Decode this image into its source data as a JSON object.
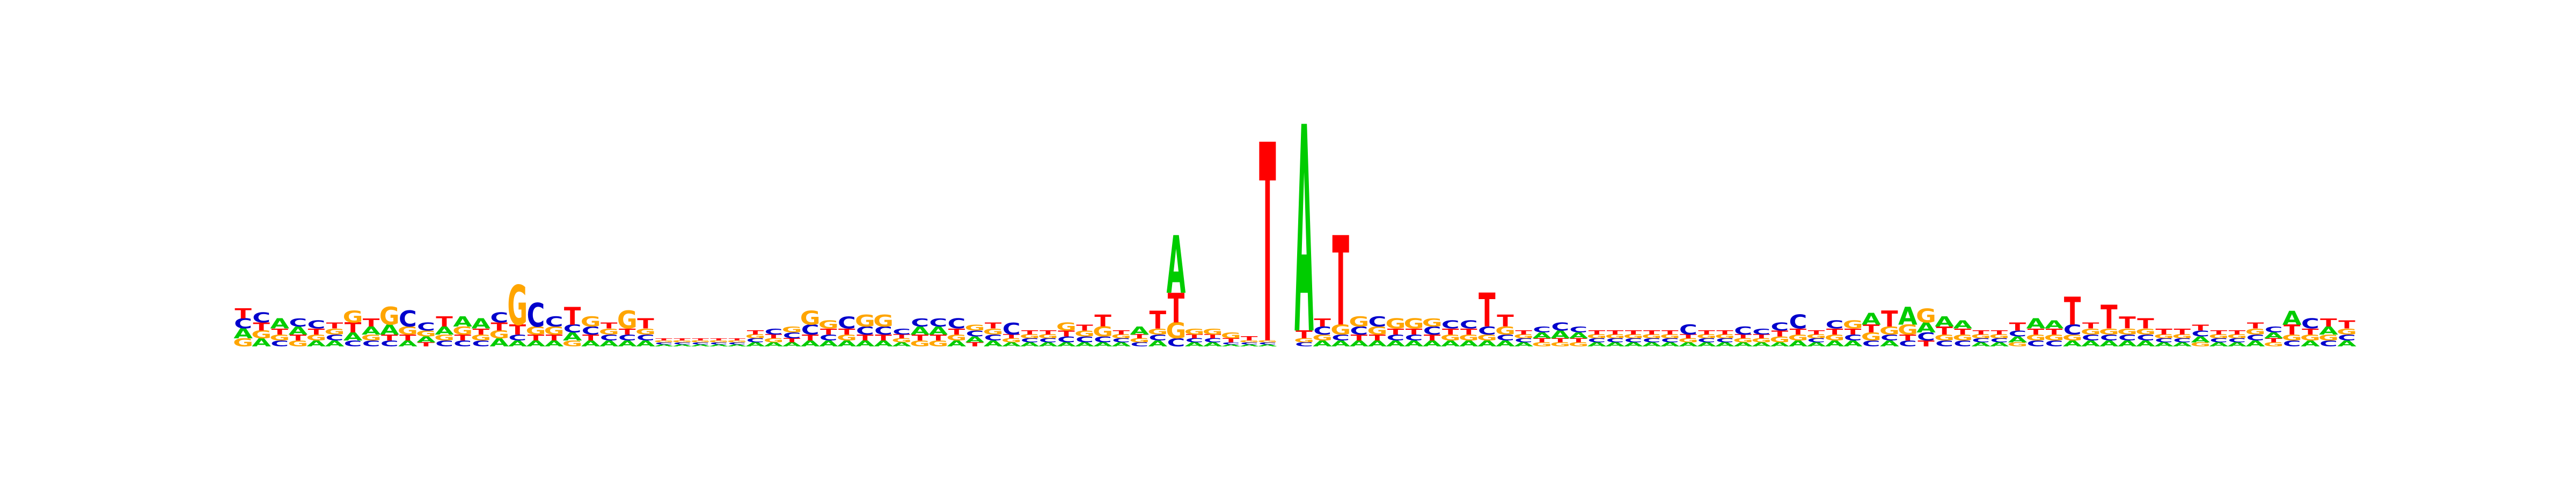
{
  "chart_data": {
    "type": "sequence_logo",
    "alphabet": [
      "A",
      "C",
      "G",
      "T"
    ],
    "colors": {
      "A": "#00cc00",
      "C": "#0000cc",
      "G": "#ffa500",
      "T": "#ff0000"
    },
    "ylim": [
      0,
      2
    ],
    "positions": [
      {
        "A": 0.05,
        "C": 0.05,
        "G": 0.04,
        "T": 0.05
      },
      {
        "A": 0.04,
        "C": 0.05,
        "G": 0.04,
        "T": 0.04
      },
      {
        "A": 0.05,
        "C": 0.03,
        "G": 0.03,
        "T": 0.03
      },
      {
        "A": 0.04,
        "C": 0.04,
        "G": 0.03,
        "T": 0.03
      },
      {
        "A": 0.03,
        "C": 0.04,
        "G": 0.03,
        "T": 0.03
      },
      {
        "A": 0.03,
        "C": 0.03,
        "G": 0.03,
        "T": 0.03
      },
      {
        "A": 0.04,
        "C": 0.03,
        "G": 0.06,
        "T": 0.05
      },
      {
        "A": 0.04,
        "C": 0.03,
        "G": 0.03,
        "T": 0.04
      },
      {
        "A": 0.05,
        "C": 0.03,
        "G": 0.09,
        "T": 0.03
      },
      {
        "A": 0.03,
        "C": 0.08,
        "G": 0.04,
        "T": 0.03
      },
      {
        "A": 0.03,
        "C": 0.04,
        "G": 0.03,
        "T": 0.02
      },
      {
        "A": 0.04,
        "C": 0.03,
        "G": 0.03,
        "T": 0.05
      },
      {
        "A": 0.05,
        "C": 0.03,
        "G": 0.04,
        "T": 0.03
      },
      {
        "A": 0.05,
        "C": 0.03,
        "G": 0.03,
        "T": 0.03
      },
      {
        "A": 0.04,
        "C": 0.05,
        "G": 0.04,
        "T": 0.04
      },
      {
        "A": 0.03,
        "C": 0.03,
        "G": 0.2,
        "T": 0.05
      },
      {
        "A": 0.03,
        "C": 0.12,
        "G": 0.04,
        "T": 0.03
      },
      {
        "A": 0.03,
        "C": 0.05,
        "G": 0.04,
        "T": 0.03
      },
      {
        "A": 0.04,
        "C": 0.04,
        "G": 0.03,
        "T": 0.09
      },
      {
        "A": 0.03,
        "C": 0.04,
        "G": 0.05,
        "T": 0.03
      },
      {
        "A": 0.03,
        "C": 0.03,
        "G": 0.03,
        "T": 0.03
      },
      {
        "A": 0.03,
        "C": 0.03,
        "G": 0.09,
        "T": 0.03
      },
      {
        "A": 0.03,
        "C": 0.03,
        "G": 0.03,
        "T": 0.05
      },
      {
        "A": 0.01,
        "C": 0.01,
        "G": 0.01,
        "T": 0.01
      },
      {
        "A": 0.01,
        "C": 0.01,
        "G": 0.01,
        "T": 0.01
      },
      {
        "A": 0.01,
        "C": 0.01,
        "G": 0.01,
        "T": 0.01
      },
      {
        "A": 0.01,
        "C": 0.01,
        "G": 0.01,
        "T": 0.01
      },
      {
        "A": 0.01,
        "C": 0.01,
        "G": 0.01,
        "T": 0.01
      },
      {
        "A": 0.02,
        "C": 0.02,
        "G": 0.02,
        "T": 0.02
      },
      {
        "A": 0.02,
        "C": 0.03,
        "G": 0.02,
        "T": 0.02
      },
      {
        "A": 0.02,
        "C": 0.03,
        "G": 0.03,
        "T": 0.02
      },
      {
        "A": 0.03,
        "C": 0.05,
        "G": 0.07,
        "T": 0.03
      },
      {
        "A": 0.03,
        "C": 0.03,
        "G": 0.04,
        "T": 0.03
      },
      {
        "A": 0.03,
        "C": 0.06,
        "G": 0.03,
        "T": 0.03
      },
      {
        "A": 0.03,
        "C": 0.04,
        "G": 0.06,
        "T": 0.03
      },
      {
        "A": 0.03,
        "C": 0.04,
        "G": 0.06,
        "T": 0.03
      },
      {
        "A": 0.02,
        "C": 0.03,
        "G": 0.02,
        "T": 0.02
      },
      {
        "A": 0.04,
        "C": 0.04,
        "G": 0.03,
        "T": 0.03
      },
      {
        "A": 0.04,
        "C": 0.04,
        "G": 0.03,
        "T": 0.03
      },
      {
        "A": 0.03,
        "C": 0.05,
        "G": 0.03,
        "T": 0.03
      },
      {
        "A": 0.03,
        "C": 0.03,
        "G": 0.03,
        "T": 0.02
      },
      {
        "A": 0.03,
        "C": 0.03,
        "G": 0.03,
        "T": 0.03
      },
      {
        "A": 0.02,
        "C": 0.06,
        "G": 0.02,
        "T": 0.02
      },
      {
        "A": 0.02,
        "C": 0.02,
        "G": 0.02,
        "T": 0.02
      },
      {
        "A": 0.02,
        "C": 0.02,
        "G": 0.02,
        "T": 0.02
      },
      {
        "A": 0.02,
        "C": 0.03,
        "G": 0.04,
        "T": 0.03
      },
      {
        "A": 0.02,
        "C": 0.03,
        "G": 0.03,
        "T": 0.03
      },
      {
        "A": 0.02,
        "C": 0.03,
        "G": 0.05,
        "T": 0.06
      },
      {
        "A": 0.02,
        "C": 0.02,
        "G": 0.02,
        "T": 0.02
      },
      {
        "A": 0.04,
        "C": 0.02,
        "G": 0.02,
        "T": 0.02
      },
      {
        "A": 0.03,
        "C": 0.03,
        "G": 0.03,
        "T": 0.09
      },
      {
        "A": 0.29,
        "C": 0.04,
        "G": 0.08,
        "T": 0.15
      },
      {
        "A": 0.02,
        "C": 0.02,
        "G": 0.03,
        "T": 0.02
      },
      {
        "A": 0.02,
        "C": 0.02,
        "G": 0.03,
        "T": 0.02
      },
      {
        "A": 0.01,
        "C": 0.01,
        "G": 0.03,
        "T": 0.02
      },
      {
        "A": 0.01,
        "C": 0.01,
        "G": 0.01,
        "T": 0.02
      },
      {
        "A": 0.01,
        "C": 0.01,
        "G": 0.01,
        "T": 1.0
      },
      {
        "A": 0.0,
        "C": 0.0,
        "G": 0.0,
        "T": 0.0
      },
      {
        "A": 1.04,
        "C": 0.02,
        "G": 0.02,
        "T": 0.04
      },
      {
        "A": 0.03,
        "C": 0.04,
        "G": 0.03,
        "T": 0.04
      },
      {
        "A": 0.03,
        "C": 0.03,
        "G": 0.05,
        "T": 0.45
      },
      {
        "A": 0.03,
        "C": 0.04,
        "G": 0.05,
        "T": 0.03
      },
      {
        "A": 0.03,
        "C": 0.05,
        "G": 0.04,
        "T": 0.03
      },
      {
        "A": 0.03,
        "C": 0.03,
        "G": 0.05,
        "T": 0.03
      },
      {
        "A": 0.03,
        "C": 0.03,
        "G": 0.05,
        "T": 0.03
      },
      {
        "A": 0.03,
        "C": 0.04,
        "G": 0.04,
        "T": 0.03
      },
      {
        "A": 0.03,
        "C": 0.04,
        "G": 0.03,
        "T": 0.03
      },
      {
        "A": 0.03,
        "C": 0.04,
        "G": 0.03,
        "T": 0.03
      },
      {
        "A": 0.03,
        "C": 0.04,
        "G": 0.03,
        "T": 0.17
      },
      {
        "A": 0.03,
        "C": 0.03,
        "G": 0.04,
        "T": 0.06
      },
      {
        "A": 0.02,
        "C": 0.02,
        "G": 0.02,
        "T": 0.02
      },
      {
        "A": 0.03,
        "C": 0.03,
        "G": 0.02,
        "T": 0.02
      },
      {
        "A": 0.04,
        "C": 0.04,
        "G": 0.02,
        "T": 0.02
      },
      {
        "A": 0.03,
        "C": 0.03,
        "G": 0.02,
        "T": 0.02
      },
      {
        "A": 0.02,
        "C": 0.02,
        "G": 0.02,
        "T": 0.02
      },
      {
        "A": 0.02,
        "C": 0.02,
        "G": 0.02,
        "T": 0.02
      },
      {
        "A": 0.02,
        "C": 0.02,
        "G": 0.02,
        "T": 0.02
      },
      {
        "A": 0.02,
        "C": 0.02,
        "G": 0.02,
        "T": 0.02
      },
      {
        "A": 0.02,
        "C": 0.02,
        "G": 0.02,
        "T": 0.02
      },
      {
        "A": 0.02,
        "C": 0.05,
        "G": 0.02,
        "T": 0.02
      },
      {
        "A": 0.02,
        "C": 0.02,
        "G": 0.02,
        "T": 0.02
      },
      {
        "A": 0.02,
        "C": 0.02,
        "G": 0.02,
        "T": 0.02
      },
      {
        "A": 0.02,
        "C": 0.04,
        "G": 0.02,
        "T": 0.02
      },
      {
        "A": 0.02,
        "C": 0.03,
        "G": 0.02,
        "T": 0.02
      },
      {
        "A": 0.02,
        "C": 0.04,
        "G": 0.03,
        "T": 0.03
      },
      {
        "A": 0.03,
        "C": 0.07,
        "G": 0.03,
        "T": 0.03
      },
      {
        "A": 0.02,
        "C": 0.02,
        "G": 0.02,
        "T": 0.02
      },
      {
        "A": 0.03,
        "C": 0.04,
        "G": 0.03,
        "T": 0.03
      },
      {
        "A": 0.03,
        "C": 0.03,
        "G": 0.04,
        "T": 0.03
      },
      {
        "A": 0.06,
        "C": 0.03,
        "G": 0.04,
        "T": 0.04
      },
      {
        "A": 0.03,
        "C": 0.03,
        "G": 0.04,
        "T": 0.08
      },
      {
        "A": 0.09,
        "C": 0.03,
        "G": 0.05,
        "T": 0.03
      },
      {
        "A": 0.05,
        "C": 0.04,
        "G": 0.07,
        "T": 0.03
      },
      {
        "A": 0.05,
        "C": 0.03,
        "G": 0.03,
        "T": 0.04
      },
      {
        "A": 0.04,
        "C": 0.03,
        "G": 0.03,
        "T": 0.03
      },
      {
        "A": 0.02,
        "C": 0.02,
        "G": 0.02,
        "T": 0.02
      },
      {
        "A": 0.02,
        "C": 0.02,
        "G": 0.02,
        "T": 0.02
      },
      {
        "A": 0.03,
        "C": 0.03,
        "G": 0.02,
        "T": 0.04
      },
      {
        "A": 0.05,
        "C": 0.03,
        "G": 0.03,
        "T": 0.03
      },
      {
        "A": 0.04,
        "C": 0.03,
        "G": 0.03,
        "T": 0.03
      },
      {
        "A": 0.03,
        "C": 0.05,
        "G": 0.03,
        "T": 0.14
      },
      {
        "A": 0.03,
        "C": 0.03,
        "G": 0.03,
        "T": 0.03
      },
      {
        "A": 0.03,
        "C": 0.03,
        "G": 0.03,
        "T": 0.12
      },
      {
        "A": 0.03,
        "C": 0.03,
        "G": 0.03,
        "T": 0.06
      },
      {
        "A": 0.03,
        "C": 0.03,
        "G": 0.03,
        "T": 0.05
      },
      {
        "A": 0.02,
        "C": 0.02,
        "G": 0.02,
        "T": 0.03
      },
      {
        "A": 0.02,
        "C": 0.02,
        "G": 0.02,
        "T": 0.03
      },
      {
        "A": 0.03,
        "C": 0.03,
        "G": 0.02,
        "T": 0.03
      },
      {
        "A": 0.02,
        "C": 0.02,
        "G": 0.02,
        "T": 0.02
      },
      {
        "A": 0.02,
        "C": 0.02,
        "G": 0.02,
        "T": 0.02
      },
      {
        "A": 0.03,
        "C": 0.03,
        "G": 0.03,
        "T": 0.03
      },
      {
        "A": 0.03,
        "C": 0.03,
        "G": 0.02,
        "T": 0.02
      },
      {
        "A": 0.07,
        "C": 0.03,
        "G": 0.03,
        "T": 0.05
      },
      {
        "A": 0.03,
        "C": 0.05,
        "G": 0.03,
        "T": 0.03
      },
      {
        "A": 0.04,
        "C": 0.03,
        "G": 0.03,
        "T": 0.04
      },
      {
        "A": 0.03,
        "C": 0.03,
        "G": 0.03,
        "T": 0.04
      }
    ]
  }
}
